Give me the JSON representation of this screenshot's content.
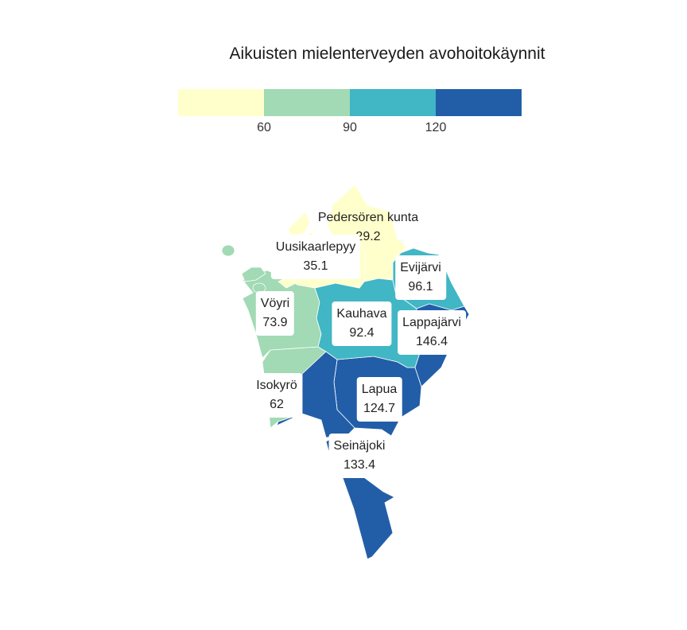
{
  "title": "Aikuisten mielenterveyden avohoitokäynnit",
  "legend": {
    "colors": [
      "#ffffcc",
      "#a1dab4",
      "#41b6c4",
      "#225ea8"
    ],
    "ticks": [
      "60",
      "90",
      "120"
    ]
  },
  "regions": [
    {
      "id": "pedersoren",
      "name": "Pedersören kunta",
      "value": "29.2",
      "color": "#ffffcc"
    },
    {
      "id": "uusikaarlepyy",
      "name": "Uusikaarlepyy",
      "value": "35.1",
      "color": "#ffffcc"
    },
    {
      "id": "voyri",
      "name": "Vöyri",
      "value": "73.9",
      "color": "#a1dab4"
    },
    {
      "id": "isokyro",
      "name": "Isokyrö",
      "value": "62",
      "color": "#a1dab4"
    },
    {
      "id": "kauhava",
      "name": "Kauhava",
      "value": "92.4",
      "color": "#41b6c4"
    },
    {
      "id": "evijarvi",
      "name": "Evijärvi",
      "value": "96.1",
      "color": "#41b6c4"
    },
    {
      "id": "lappajarvi",
      "name": "Lappajärvi",
      "value": "146.4",
      "color": "#225ea8"
    },
    {
      "id": "lapua",
      "name": "Lapua",
      "value": "124.7",
      "color": "#225ea8"
    },
    {
      "id": "seinajoki",
      "name": "Seinäjoki",
      "value": "133.4",
      "color": "#225ea8"
    }
  ]
}
